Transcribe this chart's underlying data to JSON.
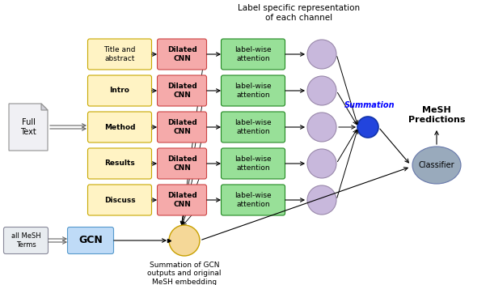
{
  "title_annotation": "Label specific representation\nof each channel",
  "full_text_label": "Full\nText",
  "gcn_input_label": "all MeSH\nTerms",
  "gcn_label": "GCN",
  "summation_label": "Summation",
  "classifier_label": "Classifier",
  "mesh_predictions_label": "MeSH\nPredictions",
  "gcn_circle_label": "Summation of GCN\noutputs and original\nMeSH embedding",
  "sections": [
    "Title and\nabstract",
    "Intro",
    "Method",
    "Results",
    "Discuss"
  ],
  "cnn_label": "Dilated\nCNN",
  "attention_label": "label-wise\nattention",
  "section_box_color": "#FFF3C4",
  "section_box_edge": "#C8A800",
  "cnn_box_color": "#F5AAAA",
  "cnn_box_edge": "#CC4444",
  "attention_box_color": "#98E098",
  "attention_box_edge": "#228822",
  "gcn_box_color": "#BFDBF7",
  "gcn_box_edge": "#5599CC",
  "gcn_input_color": "#E8ECF0",
  "gcn_input_edge": "#888899",
  "summation_color": "#2244DD",
  "classifier_color": "#99AABC",
  "gcn_circle_color": "#F5D898",
  "gcn_circle_edge": "#C8A000",
  "small_circle_color": "#C8B8DC",
  "small_circle_edge": "#9988AA",
  "bg_color": "#ffffff"
}
